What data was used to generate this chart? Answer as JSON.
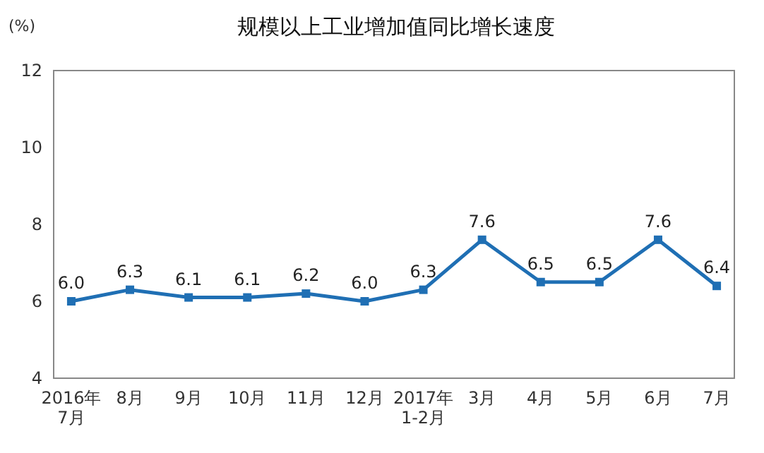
{
  "chart_data": {
    "type": "line",
    "title": "规模以上工业增加值同比增长速度",
    "ylabel": "(%)",
    "categories": [
      "2016年\n7月",
      "8月",
      "9月",
      "10月",
      "11月",
      "12月",
      "2017年\n1-2月",
      "3月",
      "4月",
      "5月",
      "6月",
      "7月"
    ],
    "series": [
      {
        "color": "#1f6fb4",
        "values": [
          6.0,
          6.3,
          6.1,
          6.1,
          6.2,
          6.0,
          6.3,
          7.6,
          6.5,
          6.5,
          7.6,
          6.4
        ],
        "value_labels": [
          "6.0",
          "6.3",
          "6.1",
          "6.1",
          "6.2",
          "6.0",
          "6.3",
          "7.6",
          "6.5",
          "6.5",
          "7.6",
          "6.4"
        ]
      }
    ],
    "ylim": [
      4,
      12
    ],
    "yticks": [
      4,
      6,
      8,
      10,
      12
    ],
    "marker": "square",
    "line_style": "solid"
  }
}
